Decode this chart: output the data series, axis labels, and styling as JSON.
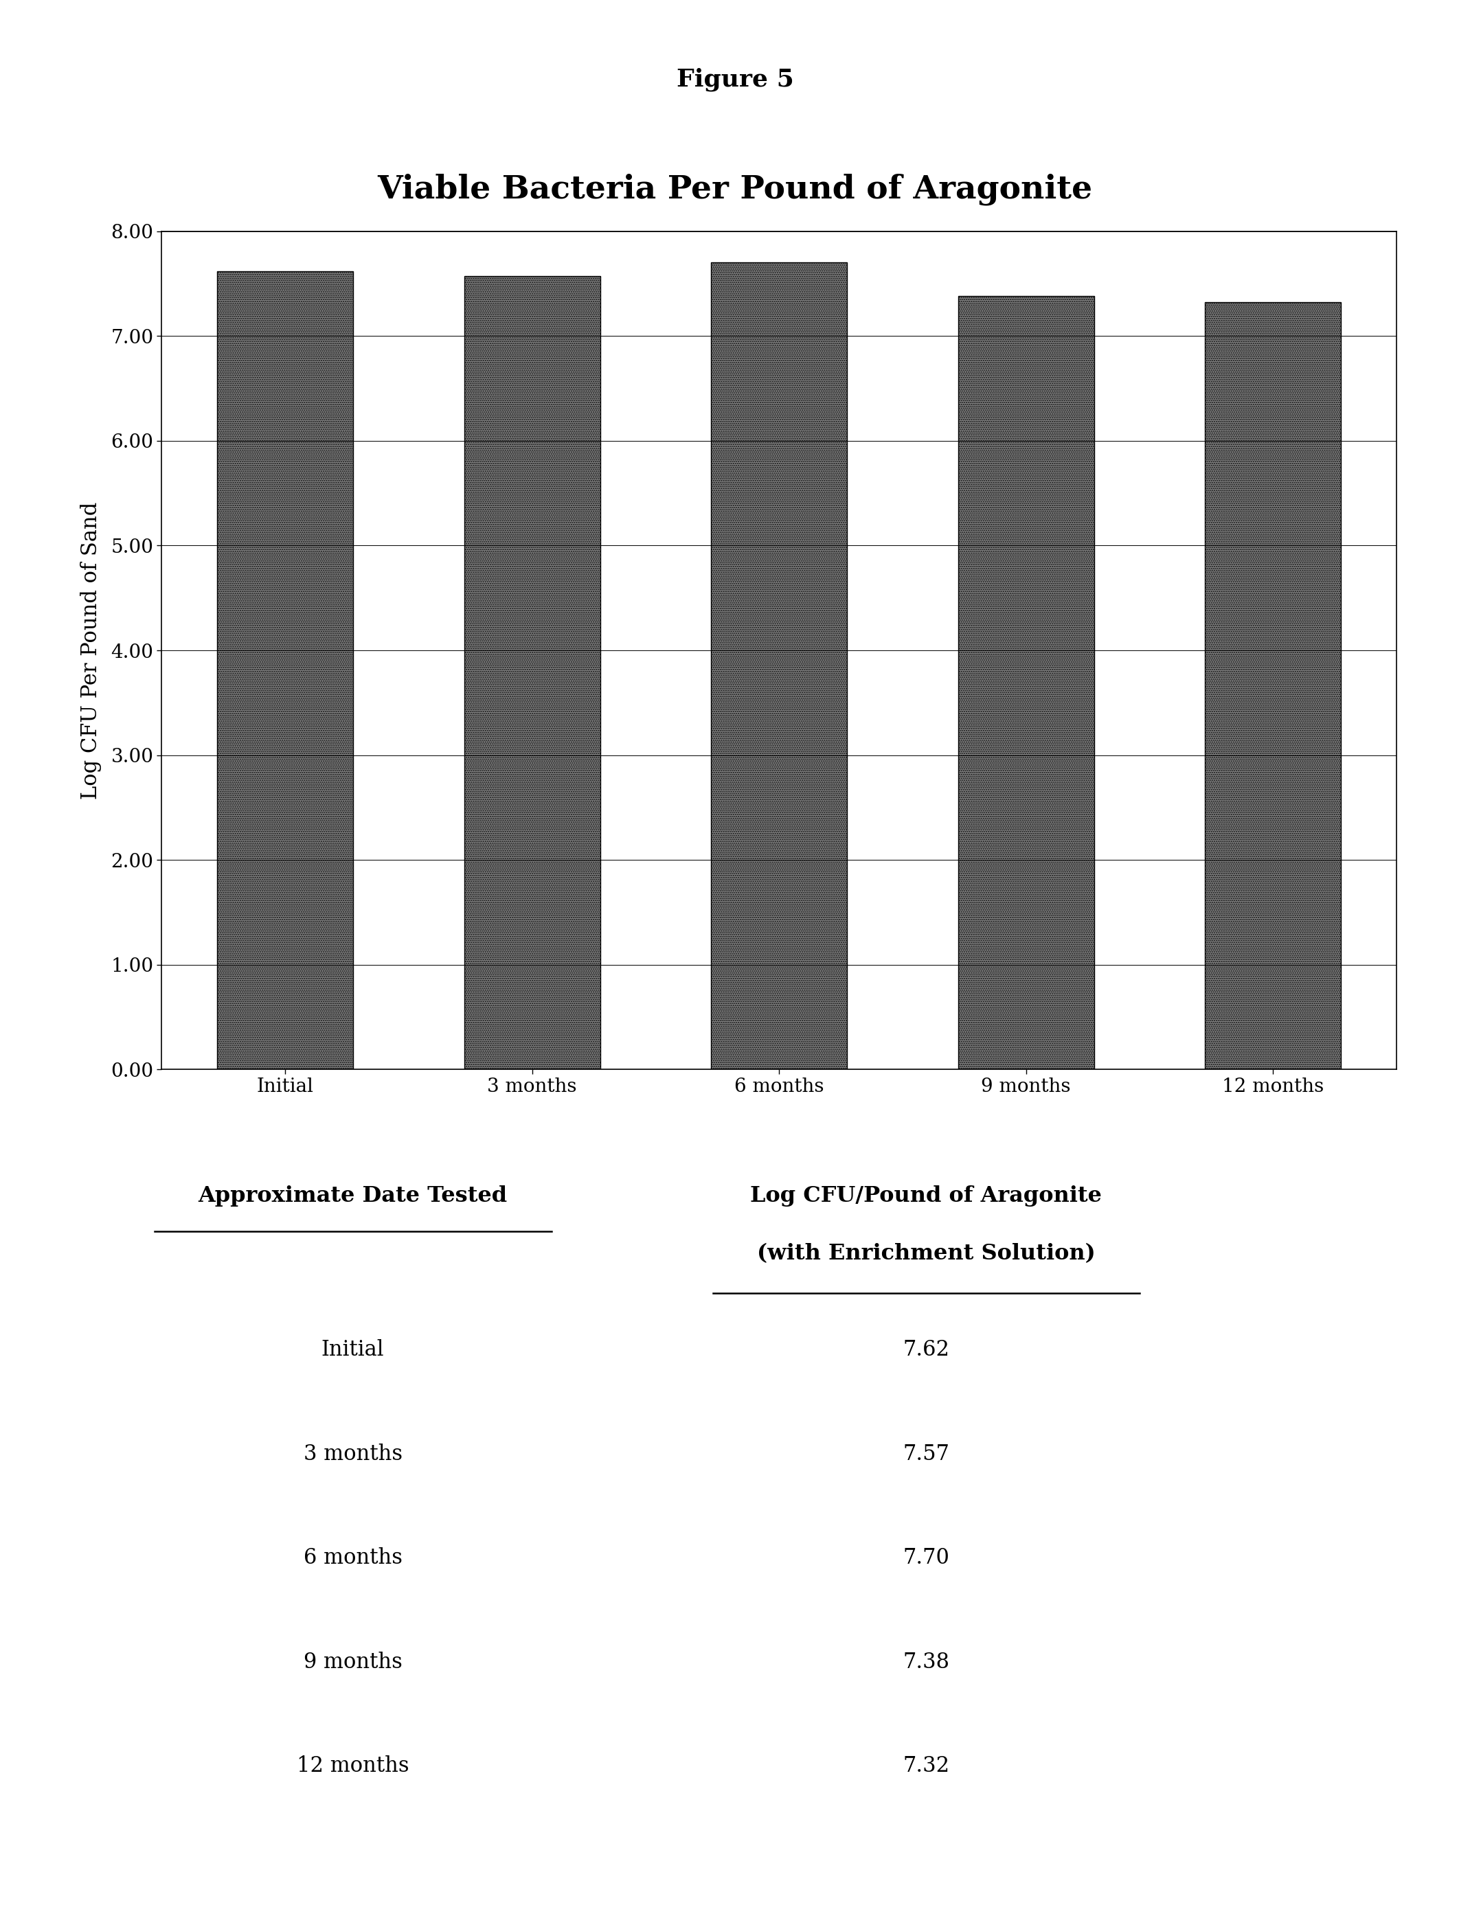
{
  "figure_label": "Figure 5",
  "chart_title": "Viable Bacteria Per Pound of Aragonite",
  "categories": [
    "Initial",
    "3 months",
    "6 months",
    "9 months",
    "12 months"
  ],
  "values": [
    7.62,
    7.57,
    7.7,
    7.38,
    7.32
  ],
  "ylabel": "Log CFU Per Pound of Sand",
  "ylim": [
    0.0,
    8.0
  ],
  "yticks": [
    0.0,
    1.0,
    2.0,
    3.0,
    4.0,
    5.0,
    6.0,
    7.0,
    8.0
  ],
  "bar_color": "#555555",
  "background_color": "#ffffff",
  "table_col1_header_line1": "Approximate Date Tested",
  "table_col2_header_line1": "Log CFU/Pound of Aragonite",
  "table_col2_header_line2": "(with Enrichment Solution)",
  "table_rows": [
    [
      "Initial",
      "7.62"
    ],
    [
      "3 months",
      "7.57"
    ],
    [
      "6 months",
      "7.70"
    ],
    [
      "9 months",
      "7.38"
    ],
    [
      "12 months",
      "7.32"
    ]
  ],
  "figure_label_fontsize": 26,
  "chart_title_fontsize": 34,
  "axis_label_fontsize": 22,
  "tick_fontsize": 20,
  "table_fontsize": 22,
  "table_header_fontsize": 23
}
